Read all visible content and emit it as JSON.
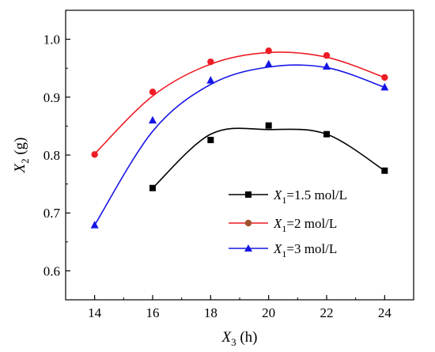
{
  "chart_data": {
    "type": "scatter",
    "xlabel": {
      "var": "X",
      "sub": "3",
      "unit": " (h)"
    },
    "ylabel": {
      "var": "X",
      "sub": "2",
      "unit": " (g)"
    },
    "xlim": [
      13,
      25
    ],
    "ylim": [
      0.55,
      1.05
    ],
    "xticks": [
      14,
      16,
      18,
      20,
      22,
      24
    ],
    "yticks": [
      0.6,
      0.7,
      0.8,
      0.9,
      1.0
    ],
    "ytick_labels": [
      "0.6",
      "0.7",
      "0.8",
      "0.9",
      "1.0"
    ],
    "legend_position": "lower-right",
    "series": [
      {
        "key": "s1",
        "legend": {
          "var": "X",
          "sub": "1",
          "text": "=1.5 mol/L"
        },
        "color": "#000000",
        "marker": "square",
        "x": [
          16,
          18,
          20,
          22,
          24
        ],
        "y": [
          0.743,
          0.826,
          0.851,
          0.836,
          0.773
        ],
        "fit": [
          0.743,
          0.836,
          0.844,
          0.836,
          0.773
        ]
      },
      {
        "key": "s2",
        "legend": {
          "var": "X",
          "sub": "1",
          "text": "=2 mol/L"
        },
        "color": "#ee1c25",
        "marker_color": "#a0522d",
        "marker": "circle",
        "x": [
          14,
          16,
          18,
          20,
          22,
          24
        ],
        "y": [
          0.801,
          0.909,
          0.961,
          0.98,
          0.972,
          0.934
        ],
        "fit": [
          0.802,
          0.902,
          0.957,
          0.977,
          0.969,
          0.934
        ]
      },
      {
        "key": "s3",
        "legend": {
          "var": "X",
          "sub": "1",
          "text": "=3 mol/L"
        },
        "color": "#1515e6",
        "marker": "triangle",
        "x": [
          14,
          16,
          18,
          20,
          22,
          24
        ],
        "y": [
          0.679,
          0.86,
          0.929,
          0.957,
          0.953,
          0.917
        ],
        "fit": [
          0.679,
          0.841,
          0.922,
          0.952,
          0.951,
          0.917
        ]
      }
    ]
  }
}
